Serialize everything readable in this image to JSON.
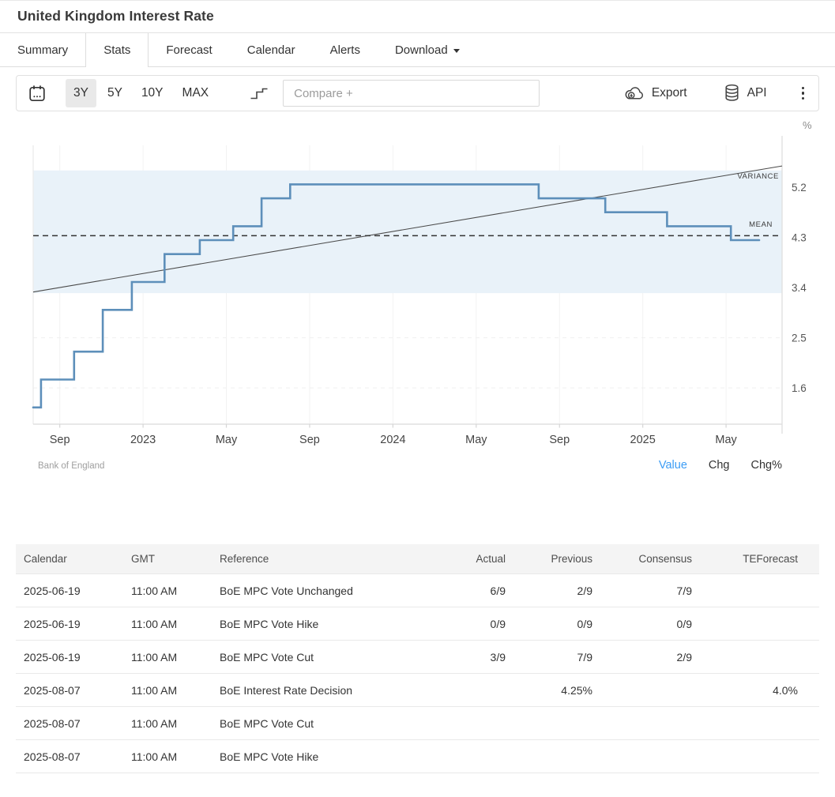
{
  "header": {
    "title": "United Kingdom Interest Rate"
  },
  "tabs": [
    {
      "label": "Summary",
      "active": false
    },
    {
      "label": "Stats",
      "active": true
    },
    {
      "label": "Forecast",
      "active": false
    },
    {
      "label": "Calendar",
      "active": false
    },
    {
      "label": "Alerts",
      "active": false
    },
    {
      "label": "Download",
      "active": false,
      "has_caret": true
    }
  ],
  "toolbar": {
    "ranges": [
      {
        "label": "3Y",
        "active": true
      },
      {
        "label": "5Y",
        "active": false
      },
      {
        "label": "10Y",
        "active": false
      },
      {
        "label": "MAX",
        "active": false
      }
    ],
    "compare_placeholder": "Compare +",
    "export_label": "Export",
    "api_label": "API"
  },
  "chart_data": {
    "type": "line",
    "subtype": "step",
    "title": "United Kingdom Interest Rate",
    "unit": "%",
    "y_axis_label": "%",
    "y_ticks": [
      5.2,
      4.3,
      3.4,
      2.5,
      1.6
    ],
    "ylim": [
      0.95,
      5.95
    ],
    "xlim_dates": [
      "2022-07-23",
      "2025-07-22"
    ],
    "x_ticks": [
      {
        "label": "Sep",
        "date": "2022-09-01"
      },
      {
        "label": "2023",
        "date": "2023-01-01"
      },
      {
        "label": "May",
        "date": "2023-05-01"
      },
      {
        "label": "Sep",
        "date": "2023-09-01"
      },
      {
        "label": "2024",
        "date": "2024-01-01"
      },
      {
        "label": "May",
        "date": "2024-05-01"
      },
      {
        "label": "Sep",
        "date": "2024-09-01"
      },
      {
        "label": "2025",
        "date": "2025-01-01"
      },
      {
        "label": "May",
        "date": "2025-05-01"
      }
    ],
    "series": [
      {
        "name": "Interest Rate",
        "steps": [
          {
            "date": "2022-07-23",
            "value": 1.25
          },
          {
            "date": "2022-08-04",
            "value": 1.75
          },
          {
            "date": "2022-09-22",
            "value": 2.25
          },
          {
            "date": "2022-11-03",
            "value": 3.0
          },
          {
            "date": "2022-12-15",
            "value": 3.5
          },
          {
            "date": "2023-02-02",
            "value": 4.0
          },
          {
            "date": "2023-03-23",
            "value": 4.25
          },
          {
            "date": "2023-05-11",
            "value": 4.5
          },
          {
            "date": "2023-06-22",
            "value": 5.0
          },
          {
            "date": "2023-08-03",
            "value": 5.25
          },
          {
            "date": "2024-08-01",
            "value": 5.0
          },
          {
            "date": "2024-11-07",
            "value": 4.75
          },
          {
            "date": "2025-02-06",
            "value": 4.5
          },
          {
            "date": "2025-05-08",
            "value": 4.25
          },
          {
            "date": "2025-06-19",
            "value": 4.25
          }
        ]
      }
    ],
    "mean_line": {
      "value": 4.33,
      "label": "MEAN"
    },
    "variance_band": {
      "low": 3.3,
      "high": 5.5,
      "label": "VARIANCE"
    },
    "trend_line": {
      "start_value": 3.32,
      "end_value": 5.58
    },
    "grid": true,
    "colors": {
      "line": "#5d8fba",
      "band": "#e9f2f9",
      "mean": "#333333",
      "trend": "#4a4a4a",
      "axis": "#e0e0e0",
      "grid": "#f2f2f2",
      "tick_text": "#555555",
      "x_text": "#444444"
    }
  },
  "chart_footer": {
    "source": "Bank of England",
    "links": [
      {
        "label": "Value",
        "active": true
      },
      {
        "label": "Chg",
        "active": false
      },
      {
        "label": "Chg%",
        "active": false
      }
    ]
  },
  "table": {
    "columns": [
      "Calendar",
      "GMT",
      "Reference",
      "Actual",
      "Previous",
      "Consensus",
      "TEForecast"
    ],
    "rows": [
      [
        "2025-06-19",
        "11:00 AM",
        "BoE MPC Vote Unchanged",
        "6/9",
        "2/9",
        "7/9",
        ""
      ],
      [
        "2025-06-19",
        "11:00 AM",
        "BoE MPC Vote Hike",
        "0/9",
        "0/9",
        "0/9",
        ""
      ],
      [
        "2025-06-19",
        "11:00 AM",
        "BoE MPC Vote Cut",
        "3/9",
        "7/9",
        "2/9",
        ""
      ],
      [
        "2025-08-07",
        "11:00 AM",
        "BoE Interest Rate Decision",
        "",
        "4.25%",
        "",
        "4.0%"
      ],
      [
        "2025-08-07",
        "11:00 AM",
        "BoE MPC Vote Cut",
        "",
        "",
        "",
        ""
      ],
      [
        "2025-08-07",
        "11:00 AM",
        "BoE MPC Vote Hike",
        "",
        "",
        "",
        ""
      ]
    ]
  }
}
